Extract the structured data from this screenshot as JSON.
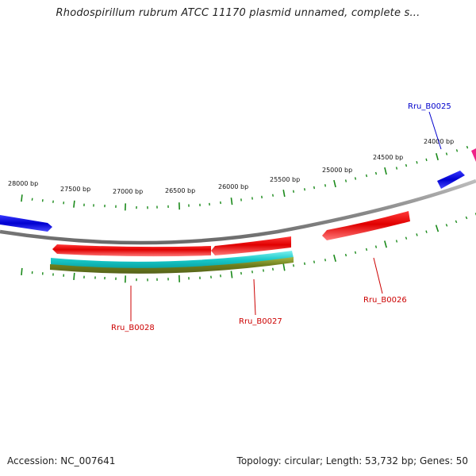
{
  "title": "Rhodospirillum rubrum ATCC 11170 plasmid unnamed, complete s...",
  "footer": {
    "accession": "Accession: NC_007641",
    "summary": "Topology: circular; Length: 53,732 bp; Genes: 50"
  },
  "colors": {
    "backbone": "#8a8a8a",
    "forward_gene": "#0000dd",
    "reverse_gene": "#ee0000",
    "cds": "#22cccc",
    "rna": "#7a8a22",
    "tick": "#1a8a1a",
    "label_blue": "#0000cc",
    "label_red": "#cc0000",
    "magenta": "#ee2288"
  },
  "scale_labels": [
    "28000 bp",
    "27500 bp",
    "27000 bp",
    "26500 bp",
    "26000 bp",
    "25500 bp",
    "25000 bp",
    "24500 bp",
    "24000 bp"
  ],
  "gene_labels": [
    "Rru_B0025",
    "Rru_B0026",
    "Rru_B0027",
    "Rru_B0028"
  ]
}
